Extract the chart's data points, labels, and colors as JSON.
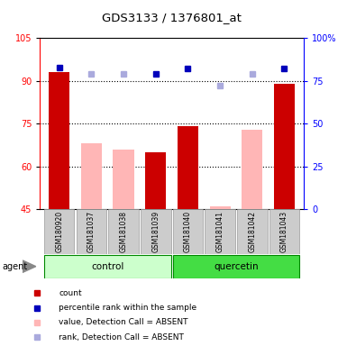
{
  "title": "GDS3133 / 1376801_at",
  "samples": [
    "GSM180920",
    "GSM181037",
    "GSM181038",
    "GSM181039",
    "GSM181040",
    "GSM181041",
    "GSM181042",
    "GSM181043"
  ],
  "bar_values": [
    93,
    68,
    66,
    65,
    74,
    46,
    73,
    89
  ],
  "bar_absent": [
    false,
    true,
    true,
    false,
    false,
    true,
    true,
    false
  ],
  "rank_values": [
    83,
    79,
    79,
    79,
    82,
    72,
    79,
    82
  ],
  "rank_absent": [
    false,
    true,
    true,
    false,
    false,
    true,
    true,
    false
  ],
  "ylim_left": [
    45,
    105
  ],
  "ylim_right": [
    0,
    100
  ],
  "yticks_left": [
    45,
    60,
    75,
    90,
    105
  ],
  "yticks_right": [
    0,
    25,
    50,
    75,
    100
  ],
  "ytick_labels_right": [
    "0",
    "25",
    "50",
    "75",
    "100%"
  ],
  "grid_lines": [
    60,
    75,
    90
  ],
  "color_red_bar": "#CC0000",
  "color_pink_bar": "#FFB6B6",
  "color_blue_square": "#0000BB",
  "color_lightblue_square": "#AAAADD",
  "group_control_color": "#CCFFCC",
  "group_quercetin_color": "#44DD44",
  "group_border_color": "#008800",
  "sample_bg_color": "#CCCCCC",
  "sample_border_color": "#999999",
  "legend_items": [
    "count",
    "percentile rank within the sample",
    "value, Detection Call = ABSENT",
    "rank, Detection Call = ABSENT"
  ],
  "legend_colors": [
    "#CC0000",
    "#0000BB",
    "#FFB6B6",
    "#AAAADD"
  ]
}
